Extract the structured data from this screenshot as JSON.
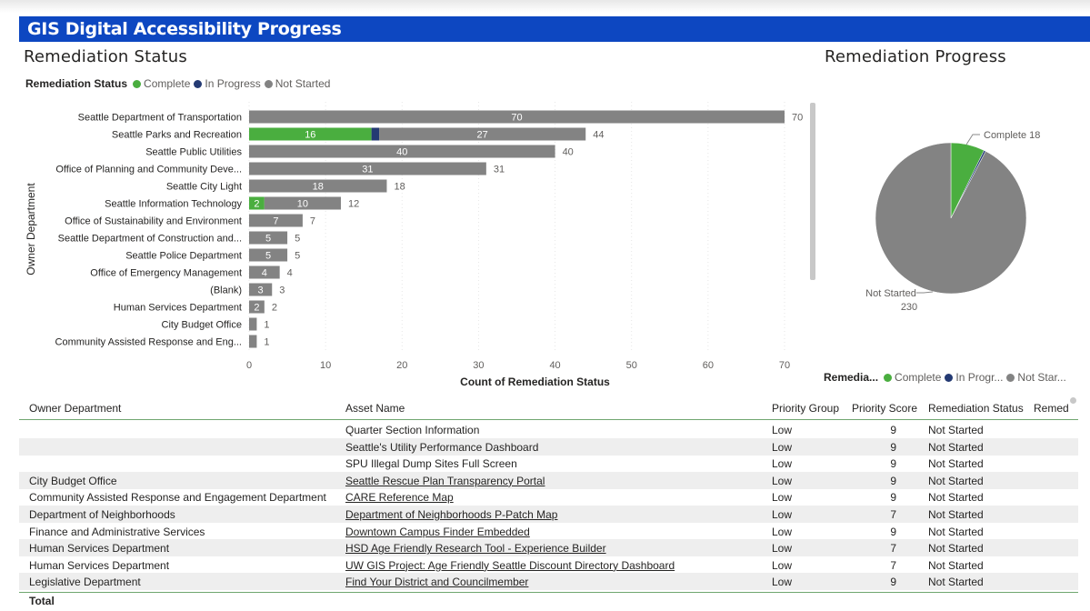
{
  "page_title": "GIS Digital Accessibility Progress",
  "bar_section_title": "Remediation Status",
  "pie_section_title": "Remediation Progress",
  "bar_legend": {
    "title": "Remediation Status",
    "items": [
      {
        "label": "Complete",
        "color": "#4aae3f"
      },
      {
        "label": "In Progress",
        "color": "#243a73"
      },
      {
        "label": "Not Started",
        "color": "#838383"
      }
    ]
  },
  "pie_legend": {
    "title": "Remedia...",
    "items": [
      {
        "label": "Complete",
        "color": "#4aae3f"
      },
      {
        "label": "In Progr...",
        "color": "#243a73"
      },
      {
        "label": "Not Star...",
        "color": "#838383"
      }
    ]
  },
  "chart_data": [
    {
      "type": "bar",
      "orientation": "horizontal",
      "stacked": true,
      "xlabel": "Count of Remediation Status",
      "ylabel": "Owner Department",
      "xlim": [
        0,
        70
      ],
      "xticks": [
        "0",
        "10",
        "20",
        "30",
        "40",
        "50",
        "60",
        "70"
      ],
      "categories": [
        "Seattle Department of Transportation",
        "Seattle Parks and Recreation",
        "Seattle Public Utilities",
        "Office of Planning and Community Deve...",
        "Seattle City Light",
        "Seattle Information Technology",
        "Office of Sustainability and Environment",
        "Seattle Department of Construction and...",
        "Seattle Police Department",
        "Office of Emergency Management",
        "(Blank)",
        "Human Services Department",
        "City Budget Office",
        "Community Assisted Response and Eng..."
      ],
      "series": [
        {
          "name": "Complete",
          "color": "#4aae3f",
          "values": [
            0,
            16,
            0,
            0,
            0,
            2,
            0,
            0,
            0,
            0,
            0,
            0,
            0,
            0
          ]
        },
        {
          "name": "In Progress",
          "color": "#243a73",
          "values": [
            0,
            1,
            0,
            0,
            0,
            0,
            0,
            0,
            0,
            0,
            0,
            0,
            0,
            0
          ]
        },
        {
          "name": "Not Started",
          "color": "#838383",
          "values": [
            70,
            27,
            40,
            31,
            18,
            10,
            7,
            5,
            5,
            4,
            3,
            2,
            1,
            1
          ]
        }
      ],
      "totals": [
        70,
        44,
        40,
        31,
        18,
        12,
        7,
        5,
        5,
        4,
        3,
        2,
        1,
        1
      ],
      "grid": true
    },
    {
      "type": "pie",
      "slices": [
        {
          "label": "Complete",
          "value": 18,
          "color": "#4aae3f"
        },
        {
          "label": "In Progress",
          "value": 1,
          "color": "#243a73"
        },
        {
          "label": "Not Started",
          "value": 230,
          "color": "#838383"
        }
      ],
      "data_labels": [
        {
          "text": "Complete 18"
        },
        {
          "text": "Not Started"
        },
        {
          "text": "230"
        }
      ]
    }
  ],
  "table": {
    "columns": [
      "Owner Department",
      "Asset Name",
      "Priority Group",
      "Priority Score",
      "Remediation Status",
      "Remed"
    ],
    "rows": [
      {
        "dept": "",
        "asset": "Quarter Section Information",
        "link": false,
        "group": "Low",
        "score": "9",
        "status": "Not Started"
      },
      {
        "dept": "",
        "asset": "Seattle's Utility Performance Dashboard",
        "link": false,
        "group": "Low",
        "score": "9",
        "status": "Not Started"
      },
      {
        "dept": "",
        "asset": "SPU Illegal Dump Sites Full Screen",
        "link": false,
        "group": "Low",
        "score": "9",
        "status": "Not Started"
      },
      {
        "dept": "City Budget Office",
        "asset": "Seattle Rescue Plan Transparency Portal",
        "link": true,
        "group": "Low",
        "score": "9",
        "status": "Not Started"
      },
      {
        "dept": "Community Assisted Response and Engagement Department",
        "asset": "CARE Reference Map",
        "link": true,
        "group": "Low",
        "score": "9",
        "status": "Not Started"
      },
      {
        "dept": "Department of Neighborhoods",
        "asset": "Department of Neighborhoods P-Patch Map",
        "link": true,
        "group": "Low",
        "score": "7",
        "status": "Not Started"
      },
      {
        "dept": "Finance and Administrative Services",
        "asset": "Downtown Campus Finder Embedded",
        "link": true,
        "group": "Low",
        "score": "9",
        "status": "Not Started"
      },
      {
        "dept": "Human Services Department",
        "asset": "HSD Age Friendly Research Tool - Experience Builder",
        "link": true,
        "group": "Low",
        "score": "7",
        "status": "Not Started"
      },
      {
        "dept": "Human Services Department",
        "asset": "UW GIS Project: Age Friendly Seattle Discount Directory Dashboard",
        "link": true,
        "group": "Low",
        "score": "7",
        "status": "Not Started"
      },
      {
        "dept": "Legislative Department",
        "asset": "Find Your District and Councilmember",
        "link": true,
        "group": "Low",
        "score": "9",
        "status": "Not Started"
      }
    ],
    "total_label": "Total"
  }
}
